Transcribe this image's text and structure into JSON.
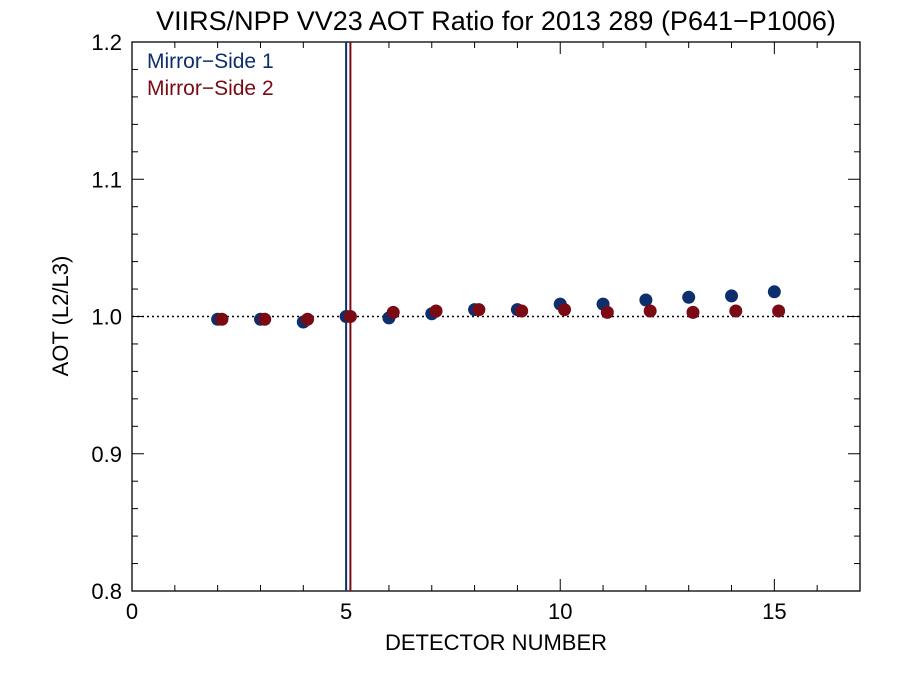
{
  "chart_data": {
    "type": "scatter",
    "title": "VIIRS/NPP VV23 AOT Ratio for 2013 289 (P641−P1006)",
    "xlabel": "DETECTOR NUMBER",
    "ylabel": "AOT (L2/L3)",
    "xlim": [
      0,
      17
    ],
    "ylim": [
      0.8,
      1.2
    ],
    "x_ticks": [
      0,
      5,
      10,
      15
    ],
    "x_tick_labels": [
      "0",
      "5",
      "10",
      "15"
    ],
    "y_ticks": [
      0.8,
      0.9,
      1.0,
      1.1,
      1.2
    ],
    "y_tick_labels": [
      "0.8",
      "0.9",
      "1.0",
      "1.1",
      "1.2"
    ],
    "grid": false,
    "legend_position": "top-left",
    "reference_line": {
      "y": 1.0,
      "style": "dotted"
    },
    "vertical_lines": [
      {
        "x": 5.0,
        "color": "#0d2f6e"
      },
      {
        "x": 5.1,
        "color": "#7a0a14"
      }
    ],
    "series": [
      {
        "name": "Mirror−Side 1",
        "color": "#0d2f6e",
        "x": [
          2,
          3,
          4,
          5,
          6,
          7,
          8,
          9,
          10,
          11,
          12,
          13,
          14,
          15
        ],
        "y": [
          0.998,
          0.998,
          0.996,
          1.0,
          0.999,
          1.002,
          1.005,
          1.005,
          1.009,
          1.009,
          1.012,
          1.014,
          1.015,
          1.018
        ]
      },
      {
        "name": "Mirror−Side 2",
        "color": "#7a0a14",
        "x": [
          2.1,
          3.1,
          4.1,
          5.1,
          6.1,
          7.1,
          8.1,
          9.1,
          10.1,
          11.1,
          12.1,
          13.1,
          14.1,
          15.1
        ],
        "y": [
          0.998,
          0.998,
          0.998,
          1.0,
          1.003,
          1.004,
          1.005,
          1.004,
          1.005,
          1.003,
          1.004,
          1.003,
          1.004,
          1.004
        ]
      }
    ]
  }
}
